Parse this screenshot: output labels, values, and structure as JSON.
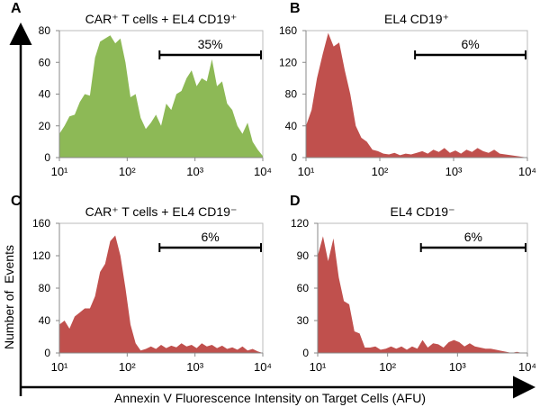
{
  "figure": {
    "ylabel": "Number of  Events",
    "xlabel": "Annexin V Fluorescence Intensity on Target Cells (AFU)"
  },
  "chart_data": [
    {
      "type": "area",
      "panel": "A",
      "title": "CAR⁺ T cells + EL4 CD19⁺",
      "color": "#8db956",
      "xscale": "log",
      "xlim": [
        10,
        10000
      ],
      "ylim": [
        0,
        80
      ],
      "xticks": [
        "10¹",
        "10²",
        "10³",
        "10⁴"
      ],
      "yticks": [
        "0",
        "20",
        "40",
        "60",
        "80"
      ],
      "gate": {
        "range": [
          300,
          10000
        ],
        "label": "35%"
      },
      "x": [
        10,
        11.9,
        14.1,
        16.8,
        20,
        23.7,
        28.2,
        33.5,
        39.8,
        47.3,
        56.2,
        66.8,
        79.4,
        94.4,
        112,
        133,
        158,
        188,
        224,
        266,
        316,
        376,
        447,
        531,
        631,
        750,
        891,
        1059,
        1259,
        1496,
        1778,
        2113,
        2512,
        2985,
        3548,
        4217,
        5012,
        5957,
        7079,
        8414,
        10000
      ],
      "y": [
        15,
        20,
        26,
        27,
        35,
        40,
        39,
        63,
        73,
        75,
        77,
        72,
        75,
        60,
        38,
        40,
        25,
        18,
        22,
        27,
        20,
        34,
        30,
        40,
        42,
        50,
        55,
        45,
        50,
        48,
        62,
        45,
        48,
        34,
        30,
        20,
        15,
        22,
        10,
        5,
        1
      ]
    },
    {
      "type": "area",
      "panel": "B",
      "title": "EL4 CD19⁺",
      "color": "#c0504d",
      "xscale": "log",
      "xlim": [
        10,
        10000
      ],
      "ylim": [
        0,
        160
      ],
      "xticks": [
        "10¹",
        "10²",
        "10³",
        "10⁴"
      ],
      "yticks": [
        "0",
        "40",
        "80",
        "120",
        "160"
      ],
      "gate": {
        "range": [
          300,
          10000
        ],
        "label": "6%"
      },
      "x": [
        10,
        11.9,
        14.1,
        16.8,
        20,
        23.7,
        28.2,
        33.5,
        39.8,
        47.3,
        56.2,
        66.8,
        79.4,
        94.4,
        112,
        133,
        158,
        188,
        224,
        266,
        316,
        376,
        447,
        531,
        631,
        750,
        891,
        1059,
        1259,
        1496,
        1778,
        2113,
        2512,
        2985,
        3548,
        4217,
        5012,
        5957,
        7079,
        8414,
        10000
      ],
      "y": [
        40,
        60,
        100,
        130,
        157,
        140,
        145,
        110,
        80,
        40,
        25,
        20,
        10,
        8,
        5,
        4,
        6,
        3,
        5,
        4,
        6,
        8,
        5,
        10,
        7,
        12,
        6,
        9,
        5,
        10,
        7,
        12,
        8,
        6,
        10,
        5,
        4,
        3,
        2,
        1,
        0
      ]
    },
    {
      "type": "area",
      "panel": "C",
      "title": "CAR⁺ T cells + EL4 CD19⁻",
      "color": "#c0504d",
      "xscale": "log",
      "xlim": [
        10,
        10000
      ],
      "ylim": [
        0,
        160
      ],
      "xticks": [
        "10¹",
        "10²",
        "10³",
        "10⁴"
      ],
      "yticks": [
        "0",
        "40",
        "80",
        "120",
        "160"
      ],
      "gate": {
        "range": [
          300,
          10000
        ],
        "label": "6%"
      },
      "x": [
        10,
        11.9,
        14.1,
        16.8,
        20,
        23.7,
        28.2,
        33.5,
        39.8,
        47.3,
        56.2,
        66.8,
        79.4,
        94.4,
        112,
        133,
        158,
        188,
        224,
        266,
        316,
        376,
        447,
        531,
        631,
        750,
        891,
        1059,
        1259,
        1496,
        1778,
        2113,
        2512,
        2985,
        3548,
        4217,
        5012,
        5957,
        7079,
        8414,
        10000
      ],
      "y": [
        35,
        40,
        30,
        45,
        50,
        55,
        55,
        70,
        100,
        110,
        138,
        145,
        120,
        80,
        35,
        12,
        3,
        5,
        8,
        5,
        10,
        6,
        9,
        7,
        12,
        8,
        10,
        6,
        12,
        8,
        10,
        6,
        9,
        5,
        7,
        4,
        8,
        3,
        5,
        2,
        0
      ]
    },
    {
      "type": "area",
      "panel": "D",
      "title": "EL4 CD19⁻",
      "color": "#c0504d",
      "xscale": "log",
      "xlim": [
        10,
        10000
      ],
      "ylim": [
        0,
        120
      ],
      "xticks": [
        "10¹",
        "10²",
        "10³",
        "10⁴"
      ],
      "yticks": [
        "0",
        "30",
        "60",
        "90",
        "120"
      ],
      "gate": {
        "range": [
          300,
          10000
        ],
        "label": "6%"
      },
      "x": [
        10,
        11.9,
        14.1,
        16.8,
        20,
        23.7,
        28.2,
        33.5,
        39.8,
        47.3,
        56.2,
        66.8,
        79.4,
        94.4,
        112,
        133,
        158,
        188,
        224,
        266,
        316,
        376,
        447,
        531,
        631,
        750,
        891,
        1059,
        1259,
        1496,
        1778,
        2113,
        2512,
        2985,
        3548,
        4217,
        5012,
        5957,
        7079,
        8414,
        10000
      ],
      "y": [
        90,
        108,
        85,
        106,
        70,
        48,
        45,
        20,
        18,
        5,
        5,
        6,
        3,
        4,
        6,
        4,
        6,
        3,
        6,
        4,
        12,
        5,
        9,
        8,
        5,
        10,
        12,
        10,
        6,
        9,
        6,
        5,
        4,
        4,
        3,
        2,
        1,
        0,
        1,
        0,
        0
      ]
    }
  ]
}
